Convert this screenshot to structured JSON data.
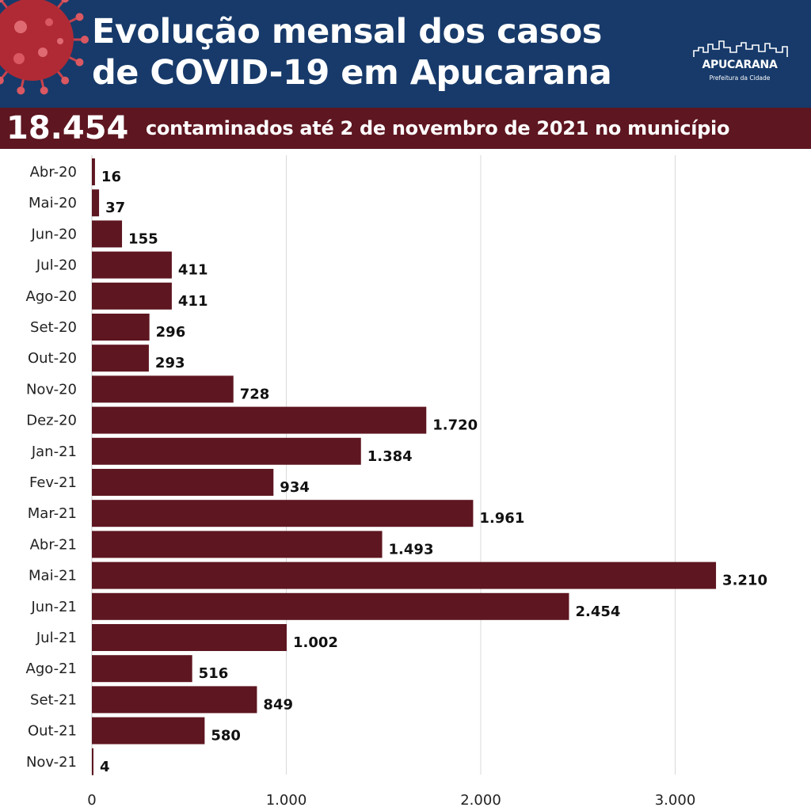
{
  "header": {
    "title_line1": "Evolução mensal dos casos",
    "title_line2": "de COVID-19 em Apucarana",
    "logo_name": "APUCARANA",
    "logo_sub": "Prefeitura da Cidade"
  },
  "summary": {
    "total": "18.454",
    "text": "contaminados até 2 de novembro de 2021 no município"
  },
  "colors": {
    "header_bg": "#173a6a",
    "band_bg": "#5e1620",
    "bar": "#5e1620",
    "grid": "#d9d9d9"
  },
  "chart_data": {
    "type": "bar",
    "orientation": "horizontal",
    "categories": [
      "Abr-20",
      "Mai-20",
      "Jun-20",
      "Jul-20",
      "Ago-20",
      "Set-20",
      "Out-20",
      "Nov-20",
      "Dez-20",
      "Jan-21",
      "Fev-21",
      "Mar-21",
      "Abr-21",
      "Mai-21",
      "Jun-21",
      "Jul-21",
      "Ago-21",
      "Set-21",
      "Out-21",
      "Nov-21"
    ],
    "values": [
      16,
      37,
      155,
      411,
      411,
      296,
      293,
      728,
      1720,
      1384,
      934,
      1961,
      1493,
      3210,
      2454,
      1002,
      516,
      849,
      580,
      4
    ],
    "value_labels": [
      "16",
      "37",
      "155",
      "411",
      "411",
      "296",
      "293",
      "728",
      "1.720",
      "1.384",
      "934",
      "1.961",
      "1.493",
      "3.210",
      "2.454",
      "1.002",
      "516",
      "849",
      "580",
      "4"
    ],
    "xlim": [
      0,
      3500
    ],
    "xticks": [
      0,
      1000,
      2000,
      3000
    ],
    "xtick_labels": [
      "0",
      "1.000",
      "2.000",
      "3.000"
    ],
    "grid": true,
    "legend": "none"
  }
}
